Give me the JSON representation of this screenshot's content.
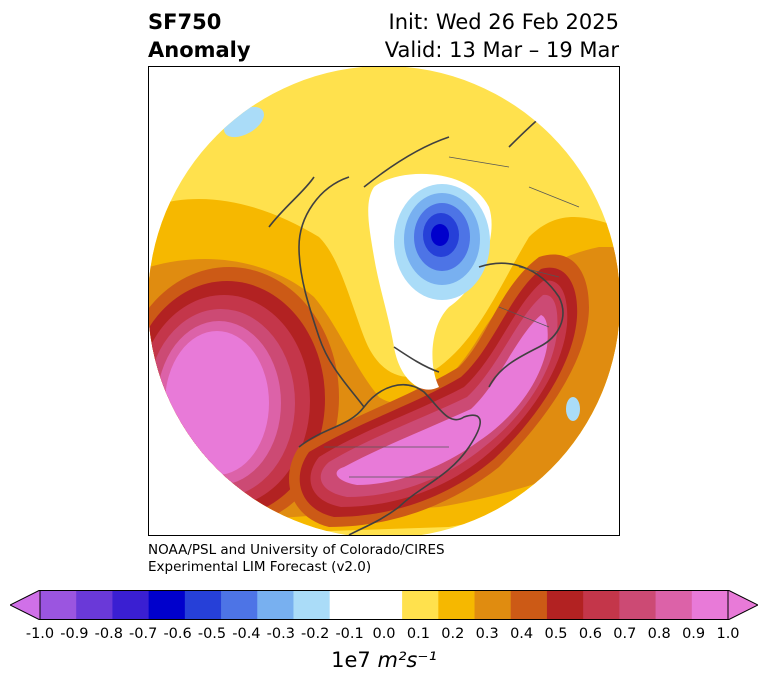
{
  "title": {
    "left_line1": "SF750",
    "left_line2": "Anomaly",
    "right_line1": "Init: Wed 26 Feb 2025",
    "right_line2": "Valid: 13 Mar – 19 Mar"
  },
  "credit": {
    "line1": "NOAA/PSL and University of Colorado/CIRES",
    "line2": "Experimental LIM Forecast (v2.0)"
  },
  "colorbar": {
    "ticks": [
      "-1.0",
      "-0.9",
      "-0.8",
      "-0.7",
      "-0.6",
      "-0.5",
      "-0.4",
      "-0.3",
      "-0.2",
      "-0.1",
      "0.0",
      "0.1",
      "0.2",
      "0.3",
      "0.4",
      "0.5",
      "0.6",
      "0.7",
      "0.8",
      "0.9",
      "1.0"
    ],
    "colors": [
      "#9b55e0",
      "#6a39d8",
      "#3a1fd2",
      "#0000cc",
      "#2640d8",
      "#4d74e6",
      "#78b0f0",
      "#aadcf8",
      "#ffffff",
      "#ffffff",
      "#ffe14d",
      "#f6b800",
      "#e08c10",
      "#cc5a16",
      "#b22222",
      "#c4364a",
      "#cc4a74",
      "#dc62a8",
      "#e87ad8"
    ],
    "low_extend_color": "#d070e8",
    "high_extend_color": "#e87ad8",
    "units_base": "1e7",
    "units_expr": "m²s⁻¹"
  },
  "map": {
    "projection": "north-polar-stereographic",
    "field": "SF750 anomaly",
    "features": [
      {
        "name": "positive-anomaly-north-pacific",
        "sign": "positive",
        "value": 1.0
      },
      {
        "name": "positive-anomaly-north-atlantic",
        "sign": "positive",
        "value": 1.0
      },
      {
        "name": "negative-anomaly-arctic",
        "sign": "negative",
        "value": -0.6
      }
    ]
  }
}
